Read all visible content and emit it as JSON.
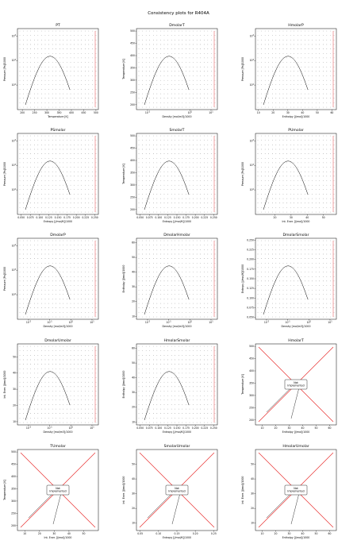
{
  "figure": {
    "title": "Consistency plots for R404A"
  },
  "chart_data": [
    {
      "type": "scatter",
      "title": "PT",
      "xlabel": "Temperature [K]",
      "ylabel": "Pressure [Pa]/1000",
      "xlim": [
        180,
        510
      ],
      "ylog": true,
      "ylim": [
        10,
        20000
      ],
      "xticks": [
        "200",
        "250",
        "300",
        "350",
        "400",
        "450",
        "500"
      ],
      "yticks": [
        "10^2",
        "10^3",
        "10^4"
      ],
      "dome": "pt",
      "impl": true
    },
    {
      "type": "scatter",
      "title": "DmolarT",
      "xlabel": "Density [mol/m3]/1000",
      "ylabel": "Temperature [K]",
      "xlog": true,
      "xlim": [
        0.003,
        20
      ],
      "ylim": [
        180,
        510
      ],
      "xticks": [
        "10^-2",
        "10^0",
        "10^1"
      ],
      "yticks": [
        "200",
        "250",
        "300",
        "350",
        "400",
        "450",
        "500"
      ],
      "dome": "dt",
      "impl": true
    },
    {
      "type": "scatter",
      "title": "HmolarP",
      "xlabel": "Enthalpy [J/mol]/1000",
      "ylabel": "Pressure [Pa]/1000",
      "xlim": [
        8,
        63
      ],
      "ylog": true,
      "ylim": [
        10,
        20000
      ],
      "xticks": [
        "10",
        "20",
        "30",
        "40",
        "50",
        "60"
      ],
      "yticks": [
        "10^2",
        "10^3",
        "10^4"
      ],
      "dome": "hp",
      "impl": true
    },
    {
      "type": "scatter",
      "title": "PSmolar",
      "xlabel": "Entropy [J/mol/K]/1000",
      "ylabel": "Pressure [Pa]/1000",
      "xlim": [
        0.04,
        0.26
      ],
      "ylog": true,
      "ylim": [
        10,
        20000
      ],
      "xticks": [
        "0.050",
        "0.075",
        "0.100",
        "0.125",
        "0.150",
        "0.175",
        "0.200",
        "0.225",
        "0.250"
      ],
      "yticks": [
        "10^2",
        "10^3",
        "10^4"
      ],
      "dome": "sp",
      "impl": true
    },
    {
      "type": "scatter",
      "title": "SmolarT",
      "xlabel": "Entropy [J/mol/K]/1000",
      "ylabel": "Temperature [K]",
      "xlim": [
        0.04,
        0.26
      ],
      "ylim": [
        180,
        510
      ],
      "xticks": [
        "0.050",
        "0.075",
        "0.100",
        "0.125",
        "0.150",
        "0.175",
        "0.200",
        "0.225",
        "0.250"
      ],
      "yticks": [
        "200",
        "250",
        "300",
        "350",
        "400",
        "450",
        "500"
      ],
      "dome": "st",
      "impl": true
    },
    {
      "type": "scatter",
      "title": "PUmolar",
      "xlabel": "Int. Ener. [J/mol]/1000",
      "ylabel": "Pressure [Pa]/1000",
      "xlim": [
        8,
        58
      ],
      "ylog": true,
      "ylim": [
        10,
        20000
      ],
      "xticks": [
        "20",
        "30",
        "40",
        "50"
      ],
      "yticks": [
        "10^2",
        "10^3",
        "10^4"
      ],
      "dome": "up",
      "impl": true
    },
    {
      "type": "scatter",
      "title": "DmolarP",
      "xlabel": "Density [mol/m3]/1000",
      "ylabel": "Pressure [Pa]/1000",
      "xlog": true,
      "xlim": [
        0.003,
        20
      ],
      "ylog": true,
      "ylim": [
        10,
        20000
      ],
      "xticks": [
        "10^-2",
        "10^-1",
        "10^0",
        "10^1"
      ],
      "yticks": [
        "10^2",
        "10^3",
        "10^4"
      ],
      "dome": "dp",
      "impl": true
    },
    {
      "type": "scatter",
      "title": "DmolarHmolar",
      "xlabel": "Density [mol/m3]/1000",
      "ylabel": "Enthalpy [J/mol]/1000",
      "xlog": true,
      "xlim": [
        0.003,
        20
      ],
      "ylim": [
        8,
        63
      ],
      "xticks": [
        "10^-2",
        "10^-1",
        "10^0",
        "10^1"
      ],
      "yticks": [
        "10",
        "20",
        "30",
        "40",
        "50",
        "60"
      ],
      "dome": "dh",
      "impl": true
    },
    {
      "type": "scatter",
      "title": "DmolarSmolar",
      "xlabel": "Density [mol/m3]/1000",
      "ylabel": "Entropy [J/mol/K]/1000",
      "xlog": true,
      "xlim": [
        0.003,
        20
      ],
      "ylim": [
        0.045,
        0.255
      ],
      "xticks": [
        "10^-2",
        "10^-1",
        "10^0",
        "10^1"
      ],
      "yticks": [
        "0.050",
        "0.075",
        "0.100",
        "0.125",
        "0.150",
        "0.175",
        "0.200",
        "0.225",
        "0.250"
      ],
      "dome": "ds",
      "impl": true
    },
    {
      "type": "scatter",
      "title": "DmolarUmolar",
      "xlabel": "Density [mol/m3]/1000",
      "ylabel": "Int. Ener. [J/mol]/1000",
      "xlog": true,
      "xlim": [
        0.003,
        20
      ],
      "ylim": [
        8,
        58
      ],
      "xticks": [
        "10^-2",
        "10^-1",
        "10^0",
        "10^1"
      ],
      "yticks": [
        "10",
        "20",
        "30",
        "40",
        "50"
      ],
      "dome": "du",
      "impl": true
    },
    {
      "type": "scatter",
      "title": "HmolarSmolar",
      "xlabel": "Entropy [J/mol/K]/1000",
      "ylabel": "Enthalpy [J/mol]/1000",
      "xlim": [
        0.04,
        0.26
      ],
      "ylim": [
        8,
        63
      ],
      "xticks": [
        "0.050",
        "0.075",
        "0.100",
        "0.125",
        "0.150",
        "0.175",
        "0.200",
        "0.225",
        "0.250"
      ],
      "yticks": [
        "10",
        "20",
        "30",
        "40",
        "50",
        "60"
      ],
      "dome": "sh",
      "impl": true
    },
    {
      "type": "scatter",
      "title": "HmolarT",
      "xlabel": "Enthalpy [J/mol]/1000",
      "ylabel": "Temperature [K]",
      "xlim": [
        5,
        65
      ],
      "ylim": [
        180,
        510
      ],
      "xticks": [
        "10",
        "20",
        "30",
        "40",
        "50",
        "60"
      ],
      "yticks": [
        "200",
        "250",
        "300",
        "350",
        "400",
        "450",
        "500"
      ],
      "impl": false,
      "note": "Not\nImplemented"
    },
    {
      "type": "scatter",
      "title": "TUmolar",
      "xlabel": "Int. Ener. [J/mol]/1000",
      "ylabel": "Temperature [K]",
      "xlim": [
        5,
        60
      ],
      "ylim": [
        180,
        510
      ],
      "xticks": [
        "10",
        "20",
        "30",
        "40",
        "50"
      ],
      "yticks": [
        "200",
        "250",
        "300",
        "350",
        "400",
        "450",
        "500"
      ],
      "impl": false,
      "note": "Not\nImplemented"
    },
    {
      "type": "scatter",
      "title": "SmolarUmolar",
      "xlabel": "Entropy [J/mol/K]/1000",
      "ylabel": "Int. Ener. [J/mol]/1000",
      "xlim": [
        0.04,
        0.26
      ],
      "ylim": [
        5,
        60
      ],
      "xticks": [
        "0.05",
        "0.10",
        "0.15",
        "0.20",
        "0.25"
      ],
      "yticks": [
        "10",
        "20",
        "30",
        "40",
        "50"
      ],
      "impl": false,
      "note": "Not\nImplemented"
    },
    {
      "type": "scatter",
      "title": "HmolarUmolar",
      "xlabel": "Enthalpy [J/mol]/1000",
      "ylabel": "Int. Ener. [J/mol]/1000",
      "xlim": [
        5,
        65
      ],
      "ylim": [
        5,
        60
      ],
      "xticks": [
        "10",
        "20",
        "30",
        "40",
        "50",
        "60"
      ],
      "yticks": [
        "10",
        "20",
        "30",
        "40",
        "50"
      ],
      "impl": false,
      "note": "Not\nImplemented"
    }
  ]
}
